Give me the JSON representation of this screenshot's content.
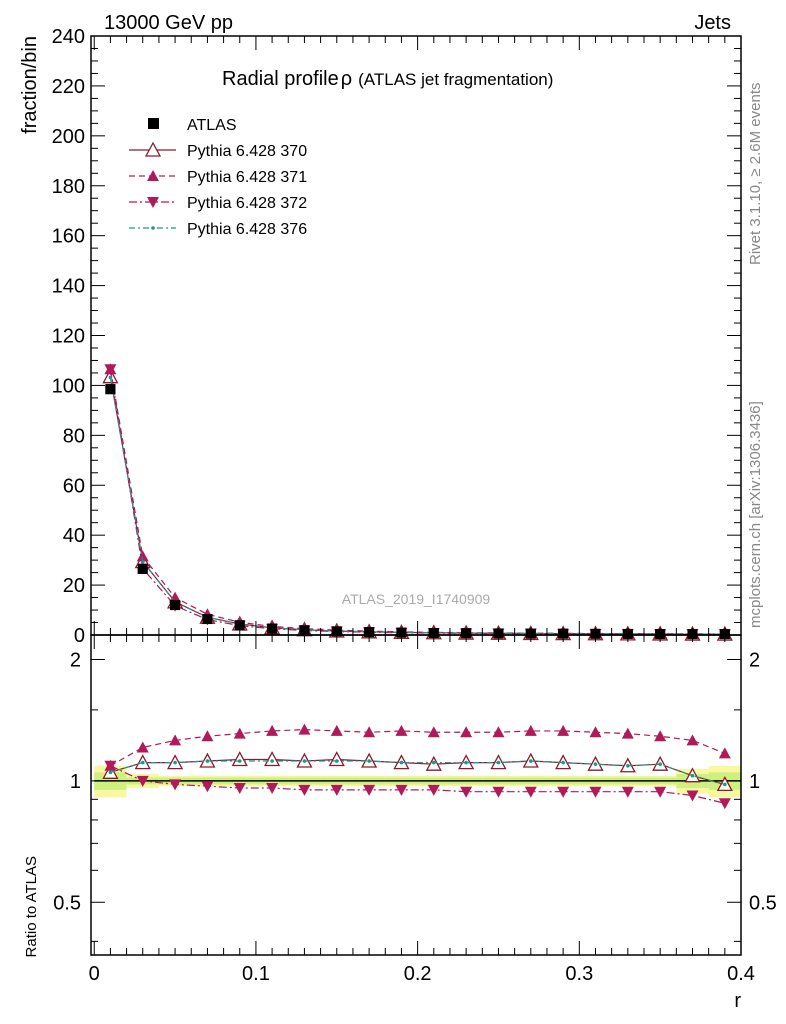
{
  "header": {
    "left": "13000 GeV pp",
    "right": "Jets"
  },
  "title": {
    "main": "Radial profile",
    "rho": "ρ",
    "sub": "(ATLAS jet fragmentation)"
  },
  "side_labels": {
    "rivet": "Rivet 3.1.10, ≥ 2.6M events",
    "mcplots": "mcplots.cern.ch [arXiv:1306.3436]"
  },
  "watermark": "ATLAS_2019_I1740909",
  "colors": {
    "atlas": "#000000",
    "p370": "#8b1a2b",
    "p371": "#b01a5a",
    "p372": "#b01a5a",
    "p376": "#1a9a8a",
    "band_inner": "#cfef7f",
    "band_outer": "#f8f8a0"
  },
  "chart_data": {
    "type": "line",
    "xlabel": "r",
    "ylabel_top": "fraction/bin",
    "ylabel_bottom": "Ratio to ATLAS",
    "xlim": [
      -0.002,
      0.4
    ],
    "ylim_top": [
      0,
      240
    ],
    "ylim_bottom": [
      0.37,
      2.3
    ],
    "x_ticks": [
      "0",
      "0.1",
      "0.2",
      "0.3",
      "0.4"
    ],
    "y_ticks_top": [
      "0",
      "20",
      "40",
      "60",
      "80",
      "100",
      "120",
      "140",
      "160",
      "180",
      "200",
      "220",
      "240"
    ],
    "y_ticks_bottom": [
      "0.5",
      "1",
      "2"
    ],
    "x": [
      0.01,
      0.03,
      0.05,
      0.07,
      0.09,
      0.11,
      0.13,
      0.15,
      0.17,
      0.19,
      0.21,
      0.23,
      0.25,
      0.27,
      0.29,
      0.31,
      0.33,
      0.35,
      0.37,
      0.39
    ],
    "bin_edges": [
      0,
      0.02,
      0.04,
      0.06,
      0.08,
      0.1,
      0.12,
      0.14,
      0.16,
      0.18,
      0.2,
      0.22,
      0.24,
      0.26,
      0.28,
      0.3,
      0.32,
      0.34,
      0.36,
      0.38,
      0.4
    ],
    "band_inner": [
      0.05,
      0.02,
      0.02,
      0.02,
      0.02,
      0.02,
      0.02,
      0.02,
      0.02,
      0.02,
      0.02,
      0.02,
      0.02,
      0.02,
      0.02,
      0.02,
      0.02,
      0.02,
      0.04,
      0.05
    ],
    "band_outer": [
      0.09,
      0.04,
      0.03,
      0.03,
      0.03,
      0.03,
      0.03,
      0.03,
      0.03,
      0.03,
      0.03,
      0.03,
      0.03,
      0.03,
      0.03,
      0.03,
      0.03,
      0.03,
      0.07,
      0.09
    ],
    "series": [
      {
        "name": "ATLAS",
        "style": "data",
        "values": [
          98.5,
          26.5,
          12.0,
          6.4,
          3.9,
          2.6,
          1.9,
          1.45,
          1.15,
          0.95,
          0.8,
          0.7,
          0.62,
          0.56,
          0.5,
          0.45,
          0.42,
          0.39,
          0.36,
          0.34
        ],
        "ratio": [
          1,
          1,
          1,
          1,
          1,
          1,
          1,
          1,
          1,
          1,
          1,
          1,
          1,
          1,
          1,
          1,
          1,
          1,
          1,
          1
        ]
      },
      {
        "name": "Pythia 6.428 370",
        "style": "solid",
        "marker": "triangle-open",
        "values": [
          103.5,
          29.4,
          13.3,
          7.1,
          4.4,
          2.9,
          2.1,
          1.6,
          1.28,
          1.05,
          0.89,
          0.78,
          0.69,
          0.62,
          0.55,
          0.5,
          0.46,
          0.43,
          0.37,
          0.34
        ],
        "ratio": [
          1.05,
          1.11,
          1.11,
          1.12,
          1.13,
          1.13,
          1.12,
          1.13,
          1.12,
          1.11,
          1.1,
          1.11,
          1.11,
          1.12,
          1.11,
          1.1,
          1.09,
          1.1,
          1.03,
          0.98
        ]
      },
      {
        "name": "Pythia 6.428 371",
        "style": "dashed",
        "marker": "triangle-up",
        "values": [
          106.5,
          31.5,
          15.0,
          8.3,
          5.1,
          3.45,
          2.55,
          1.95,
          1.55,
          1.27,
          1.07,
          0.94,
          0.83,
          0.75,
          0.67,
          0.6,
          0.56,
          0.51,
          0.46,
          0.4
        ],
        "ratio": [
          1.09,
          1.21,
          1.26,
          1.29,
          1.31,
          1.33,
          1.34,
          1.33,
          1.32,
          1.33,
          1.32,
          1.32,
          1.32,
          1.33,
          1.33,
          1.32,
          1.31,
          1.29,
          1.26,
          1.17
        ]
      },
      {
        "name": "Pythia 6.428 372",
        "style": "dashdot",
        "marker": "triangle-down",
        "values": [
          106.5,
          26.6,
          11.7,
          6.2,
          3.75,
          2.5,
          1.8,
          1.38,
          1.1,
          0.9,
          0.76,
          0.66,
          0.58,
          0.53,
          0.47,
          0.42,
          0.39,
          0.36,
          0.33,
          0.3
        ],
        "ratio": [
          1.09,
          1.0,
          0.98,
          0.97,
          0.96,
          0.96,
          0.95,
          0.95,
          0.95,
          0.95,
          0.95,
          0.94,
          0.94,
          0.94,
          0.94,
          0.94,
          0.94,
          0.94,
          0.92,
          0.88
        ]
      },
      {
        "name": "Pythia 6.428 376",
        "style": "dashdot-teal",
        "marker": "dot",
        "values": [
          103.2,
          29.3,
          13.2,
          7.1,
          4.4,
          2.9,
          2.1,
          1.6,
          1.27,
          1.05,
          0.88,
          0.77,
          0.68,
          0.61,
          0.55,
          0.5,
          0.46,
          0.42,
          0.37,
          0.34
        ],
        "ratio": [
          1.05,
          1.11,
          1.11,
          1.12,
          1.12,
          1.12,
          1.12,
          1.12,
          1.12,
          1.11,
          1.11,
          1.11,
          1.11,
          1.12,
          1.11,
          1.1,
          1.09,
          1.1,
          1.03,
          0.98
        ]
      }
    ]
  }
}
